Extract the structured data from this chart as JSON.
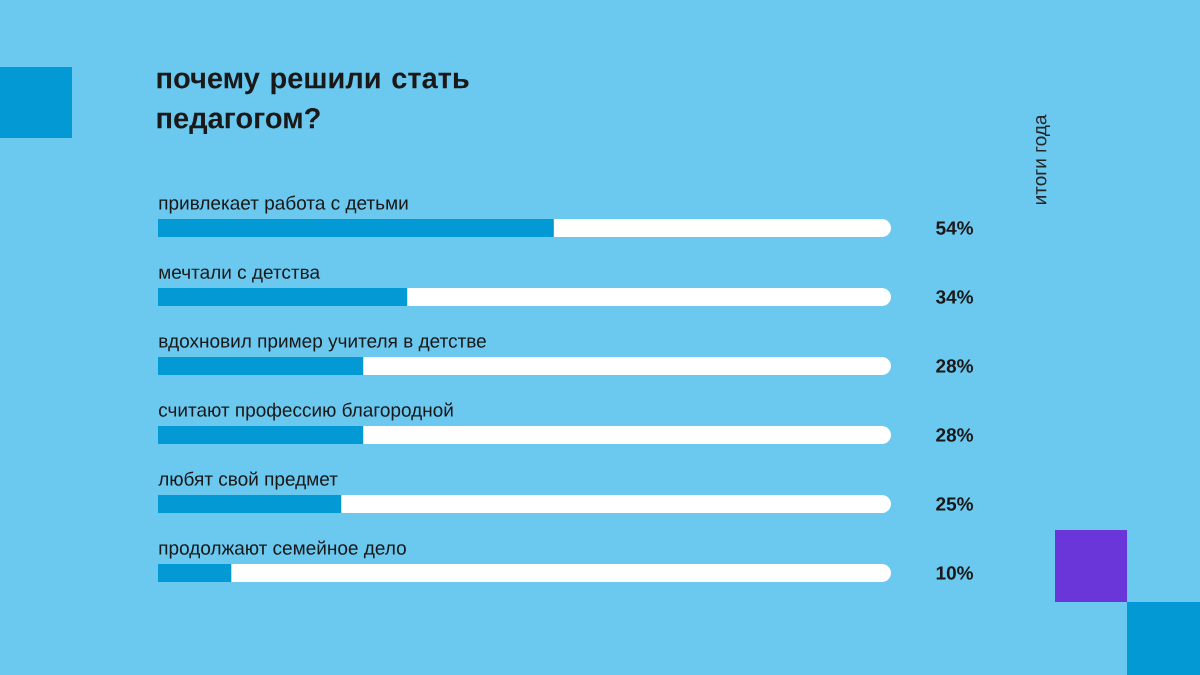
{
  "chart_data": {
    "type": "bar",
    "orientation": "horizontal",
    "title": "почему решили стать педагогом?",
    "categories": [
      "привлекает работа с детьми",
      "мечтали с детства",
      "вдохновил пример учителя в детстве",
      "считают профессию благородной",
      "любят свой предмет",
      "продолжают семейное дело"
    ],
    "values": [
      54,
      34,
      28,
      28,
      25,
      10
    ],
    "value_labels": [
      "54%",
      "34%",
      "28%",
      "28%",
      "25%",
      "10%"
    ],
    "color": "#0399d4",
    "xlim": [
      0,
      100
    ],
    "annotations": [
      "итоги года"
    ]
  }
}
